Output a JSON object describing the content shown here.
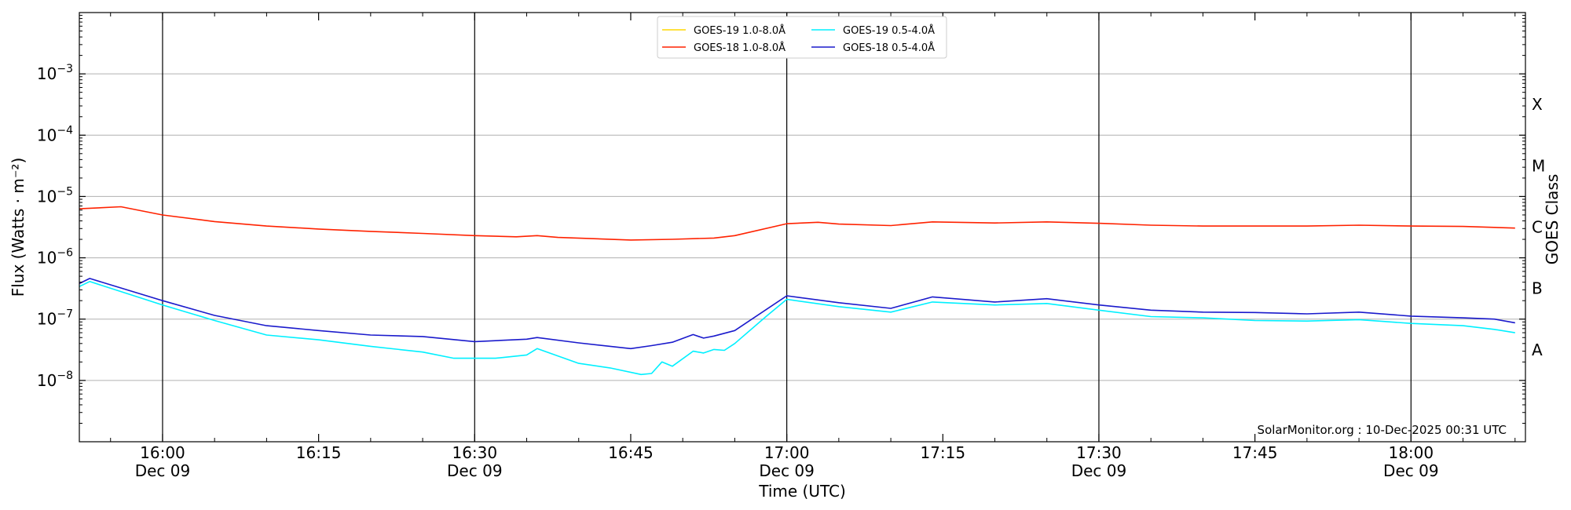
{
  "chart_data": {
    "type": "line",
    "xlabel": "Time (UTC)",
    "ylabel": "Flux (Watts · m⁻²)",
    "right_ylabel": "GOES Class",
    "credit": "SolarMonitor.org : 10-Dec-2025 00:31 UTC",
    "log_y": true,
    "ylim": [
      1e-09,
      0.01
    ],
    "xlim": [
      "2025-12-09 15:52",
      "2025-12-09 18:11"
    ],
    "grid": "horizontal",
    "legend_position": "top-center",
    "x_ticks": [
      {
        "time": "16:00",
        "date": "Dec 09",
        "major": true
      },
      {
        "time": "16:15",
        "date": "",
        "major": false
      },
      {
        "time": "16:30",
        "date": "Dec 09",
        "major": true
      },
      {
        "time": "16:45",
        "date": "",
        "major": false
      },
      {
        "time": "17:00",
        "date": "Dec 09",
        "major": true
      },
      {
        "time": "17:15",
        "date": "",
        "major": false
      },
      {
        "time": "17:30",
        "date": "Dec 09",
        "major": true
      },
      {
        "time": "17:45",
        "date": "",
        "major": false
      },
      {
        "time": "18:00",
        "date": "Dec 09",
        "major": true
      }
    ],
    "y_ticks": [
      {
        "value": 1e-08,
        "base": "10",
        "exp": "−8"
      },
      {
        "value": 1e-07,
        "base": "10",
        "exp": "−7"
      },
      {
        "value": 1e-06,
        "base": "10",
        "exp": "−6"
      },
      {
        "value": 1e-05,
        "base": "10",
        "exp": "−5"
      },
      {
        "value": 0.0001,
        "base": "10",
        "exp": "−4"
      },
      {
        "value": 0.001,
        "base": "10",
        "exp": "−3"
      }
    ],
    "goes_classes": [
      {
        "label": "A",
        "value": 3.16e-08
      },
      {
        "label": "B",
        "value": 3.16e-07
      },
      {
        "label": "C",
        "value": 3.16e-06
      },
      {
        "label": "M",
        "value": 3.16e-05
      },
      {
        "label": "X",
        "value": 0.000316
      }
    ],
    "series": [
      {
        "name": "GOES-19 1.0-8.0Å",
        "color": "#ffd700",
        "x": [],
        "values": []
      },
      {
        "name": "GOES-18 1.0-8.0Å",
        "color": "#ff2200",
        "x": [
          "15:52",
          "15:56",
          "16:00",
          "16:05",
          "16:10",
          "16:15",
          "16:20",
          "16:25",
          "16:30",
          "16:34",
          "16:36",
          "16:38",
          "16:45",
          "16:49",
          "16:53",
          "16:55",
          "17:00",
          "17:03",
          "17:05",
          "17:10",
          "17:14",
          "17:20",
          "17:25",
          "17:30",
          "17:35",
          "17:40",
          "17:45",
          "17:50",
          "17:55",
          "18:00",
          "18:05",
          "18:10"
        ],
        "values": [
          6.3e-06,
          6.8e-06,
          5e-06,
          3.9e-06,
          3.3e-06,
          2.95e-06,
          2.7e-06,
          2.5e-06,
          2.3e-06,
          2.2e-06,
          2.3e-06,
          2.15e-06,
          1.95e-06,
          2e-06,
          2.1e-06,
          2.3e-06,
          3.6e-06,
          3.8e-06,
          3.55e-06,
          3.35e-06,
          3.85e-06,
          3.7e-06,
          3.85e-06,
          3.65e-06,
          3.4e-06,
          3.3e-06,
          3.3e-06,
          3.3e-06,
          3.4e-06,
          3.3e-06,
          3.25e-06,
          3.05e-06
        ]
      },
      {
        "name": "GOES-19 0.5-4.0Å",
        "color": "#00f0ff",
        "x": [
          "15:52",
          "15:53",
          "16:00",
          "16:05",
          "16:10",
          "16:15",
          "16:20",
          "16:25",
          "16:28",
          "16:32",
          "16:35",
          "16:36",
          "16:40",
          "16:43",
          "16:46",
          "16:47",
          "16:48",
          "16:49",
          "16:51",
          "16:52",
          "16:53",
          "16:54",
          "16:55",
          "16:58",
          "17:00",
          "17:05",
          "17:10",
          "17:14",
          "17:20",
          "17:25",
          "17:30",
          "17:35",
          "17:40",
          "17:45",
          "17:50",
          "17:55",
          "18:00",
          "18:05",
          "18:08",
          "18:10"
        ],
        "values": [
          3.4e-07,
          4.1e-07,
          1.7e-07,
          9.5e-08,
          5.5e-08,
          4.6e-08,
          3.6e-08,
          2.9e-08,
          2.3e-08,
          2.3e-08,
          2.6e-08,
          3.3e-08,
          1.9e-08,
          1.6e-08,
          1.25e-08,
          1.3e-08,
          2e-08,
          1.7e-08,
          3e-08,
          2.8e-08,
          3.2e-08,
          3.1e-08,
          4e-08,
          1.1e-07,
          2.1e-07,
          1.6e-07,
          1.3e-07,
          1.9e-07,
          1.7e-07,
          1.8e-07,
          1.4e-07,
          1.1e-07,
          1.05e-07,
          9.5e-08,
          9.3e-08,
          9.8e-08,
          8.5e-08,
          7.8e-08,
          6.8e-08,
          6e-08
        ]
      },
      {
        "name": "GOES-18 0.5-4.0Å",
        "color": "#1a1acc",
        "x": [
          "15:52",
          "15:53",
          "16:00",
          "16:05",
          "16:10",
          "16:15",
          "16:20",
          "16:25",
          "16:30",
          "16:35",
          "16:36",
          "16:40",
          "16:45",
          "16:47",
          "16:49",
          "16:51",
          "16:52",
          "16:53",
          "16:55",
          "17:00",
          "17:05",
          "17:10",
          "17:14",
          "17:20",
          "17:25",
          "17:30",
          "17:35",
          "17:40",
          "17:45",
          "17:50",
          "17:55",
          "18:00",
          "18:05",
          "18:08",
          "18:10"
        ],
        "values": [
          3.8e-07,
          4.6e-07,
          2e-07,
          1.15e-07,
          7.8e-08,
          6.5e-08,
          5.5e-08,
          5.2e-08,
          4.3e-08,
          4.7e-08,
          5e-08,
          4.1e-08,
          3.3e-08,
          3.7e-08,
          4.2e-08,
          5.6e-08,
          4.9e-08,
          5.3e-08,
          6.5e-08,
          2.4e-07,
          1.85e-07,
          1.5e-07,
          2.3e-07,
          1.9e-07,
          2.15e-07,
          1.7e-07,
          1.4e-07,
          1.3e-07,
          1.28e-07,
          1.22e-07,
          1.3e-07,
          1.12e-07,
          1.05e-07,
          1e-07,
          8.7e-08
        ]
      }
    ]
  }
}
